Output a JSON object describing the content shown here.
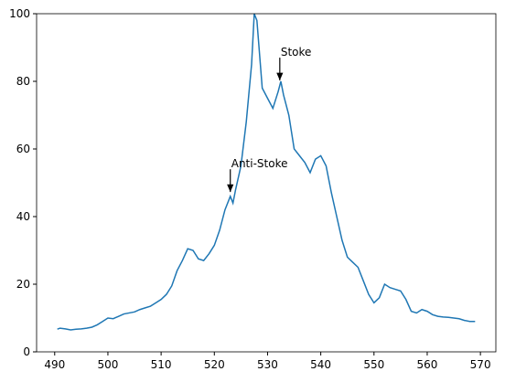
{
  "chart_data": {
    "type": "line",
    "x": [
      490.5,
      491,
      492,
      493,
      494,
      495,
      496,
      497,
      498,
      499,
      500,
      501,
      502,
      503,
      504,
      505,
      506,
      507,
      508,
      509,
      510,
      511,
      512,
      513,
      514,
      515,
      516,
      517,
      518,
      519,
      520,
      521,
      522,
      523,
      523.5,
      524,
      525,
      526,
      527,
      527.5,
      528,
      529,
      530,
      531,
      532,
      532.5,
      533,
      534,
      535,
      536,
      537,
      538,
      539,
      540,
      541,
      542,
      543,
      544,
      545,
      546,
      547,
      548,
      549,
      550,
      551,
      552,
      553,
      554,
      555,
      556,
      557,
      558,
      559,
      560,
      561,
      562,
      563,
      564,
      565,
      566,
      567,
      568,
      569
    ],
    "series": [
      {
        "color": "#1f77b4",
        "values": [
          6.7,
          7.0,
          6.8,
          6.5,
          6.7,
          6.8,
          7.0,
          7.3,
          8.0,
          9.0,
          10.0,
          9.8,
          10.5,
          11.2,
          11.5,
          11.8,
          12.5,
          13.0,
          13.5,
          14.5,
          15.5,
          17.0,
          19.5,
          24,
          27,
          30.5,
          30,
          27.5,
          27,
          29,
          31.5,
          36,
          42,
          46,
          44,
          48,
          55,
          68,
          85,
          100,
          98,
          78,
          75,
          72,
          77,
          80,
          76,
          70,
          60,
          58,
          56,
          53,
          57,
          58,
          55,
          47,
          40,
          33,
          28,
          26.5,
          25,
          21,
          17,
          14.5,
          16,
          20,
          19,
          18.5,
          18,
          15.5,
          12,
          11.5,
          12.5,
          12,
          11,
          10.5,
          10.3,
          10.2,
          10,
          9.8,
          9.3,
          9.0,
          9.0
        ]
      }
    ],
    "xlim": [
      486.6,
      572.9
    ],
    "ylim": [
      0,
      100
    ],
    "xticks": [
      490,
      500,
      510,
      520,
      530,
      540,
      550,
      560,
      570
    ],
    "yticks": [
      0,
      20,
      40,
      60,
      80,
      100
    ],
    "annotations": [
      {
        "text": "Stoke",
        "x": 532.3,
        "y": 80,
        "xytext": [
          532.3,
          87
        ]
      },
      {
        "text": "Anti-Stoke",
        "x": 523,
        "y": 47,
        "xytext": [
          523,
          54
        ]
      }
    ]
  }
}
